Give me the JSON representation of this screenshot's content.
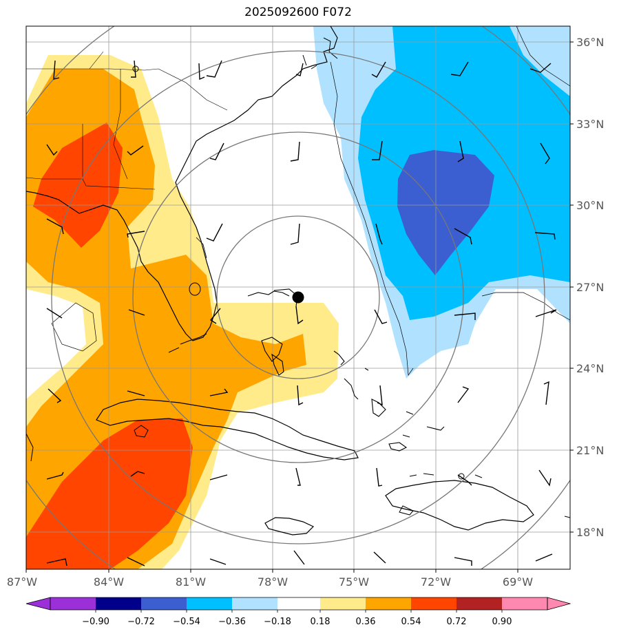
{
  "title": "2025092600 F072",
  "map": {
    "lon_labels": [
      "87°W",
      "84°W",
      "81°W",
      "78°W",
      "75°W",
      "72°W",
      "69°W"
    ],
    "lat_labels": [
      "36°N",
      "33°N",
      "30°N",
      "27°N",
      "24°N",
      "21°N",
      "18°N"
    ],
    "lon_values": [
      -87,
      -84,
      -81,
      -78,
      -75,
      -72,
      -69
    ],
    "lat_values": [
      36,
      33,
      30,
      27,
      24,
      21,
      18
    ],
    "extent": {
      "lon_min": -87,
      "lon_max": -67,
      "lat_min": 16.7,
      "lat_max": 36.6
    },
    "storm_center": {
      "lon": -77.0,
      "lat": 26.6
    },
    "range_rings_deg": [
      3,
      6,
      9,
      12
    ]
  },
  "colorbar": {
    "tick_labels": [
      "−0.90",
      "−0.72",
      "−0.54",
      "−0.36",
      "−0.18",
      "0.18",
      "0.36",
      "0.54",
      "0.72",
      "0.90"
    ],
    "colors": [
      "#9b30d9",
      "#00008b",
      "#3b5fd0",
      "#00bfff",
      "#b0e2ff",
      "#ffffff",
      "#ffeb8a",
      "#ffa500",
      "#ff4500",
      "#b22222",
      "#ff88b0"
    ]
  }
}
